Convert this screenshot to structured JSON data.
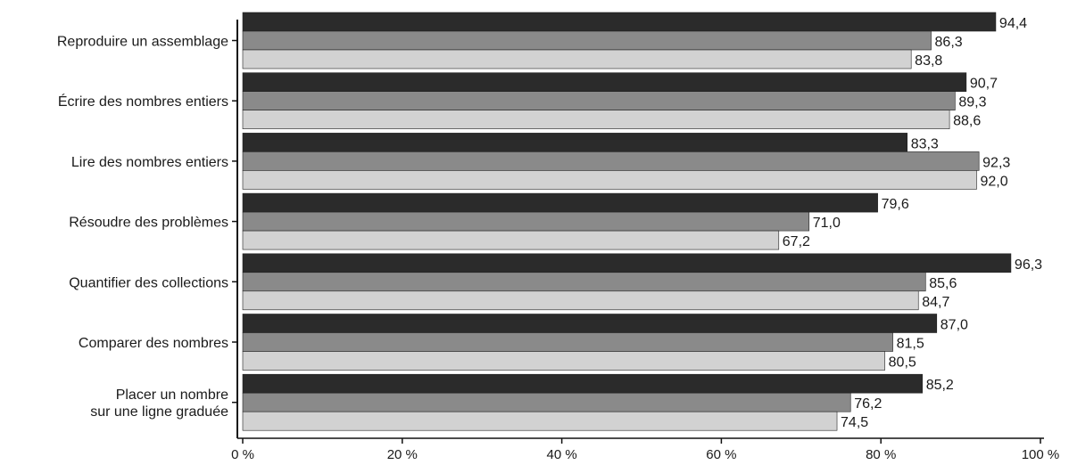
{
  "chart_data": {
    "type": "bar",
    "orientation": "horizontal",
    "categories": [
      [
        "Reproduire un assemblage"
      ],
      [
        "Écrire des nombres entiers"
      ],
      [
        "Lire des nombres entiers"
      ],
      [
        "Résoudre des problèmes"
      ],
      [
        "Quantifier des collections"
      ],
      [
        "Comparer des nombres"
      ],
      [
        "Placer un nombre",
        "sur une ligne graduée"
      ]
    ],
    "series": [
      {
        "values": [
          94.4,
          90.7,
          83.3,
          79.6,
          96.3,
          87.0,
          85.2
        ],
        "labels": [
          "94,4",
          "90,7",
          "83,3",
          "79,6",
          "96,3",
          "87,0",
          "85,2"
        ],
        "color": "#2b2b2b"
      },
      {
        "values": [
          86.3,
          89.3,
          92.3,
          71.0,
          85.6,
          81.5,
          76.2
        ],
        "labels": [
          "86,3",
          "89,3",
          "92,3",
          "71,0",
          "85,6",
          "81,5",
          "76,2"
        ],
        "color": "#8a8a8a"
      },
      {
        "values": [
          83.8,
          88.6,
          92.0,
          67.2,
          84.7,
          80.5,
          74.5
        ],
        "labels": [
          "83,8",
          "88,6",
          "92,0",
          "67,2",
          "84,7",
          "80,5",
          "74,5"
        ],
        "color": "#d2d2d2"
      }
    ],
    "xlim": [
      0,
      100
    ],
    "xticks": [
      0,
      20,
      40,
      60,
      80,
      100
    ],
    "xtick_labels": [
      "0 %",
      "20 %",
      "40 %",
      "60 %",
      "80 %",
      "100 %"
    ],
    "grid": false,
    "legend": "none"
  }
}
